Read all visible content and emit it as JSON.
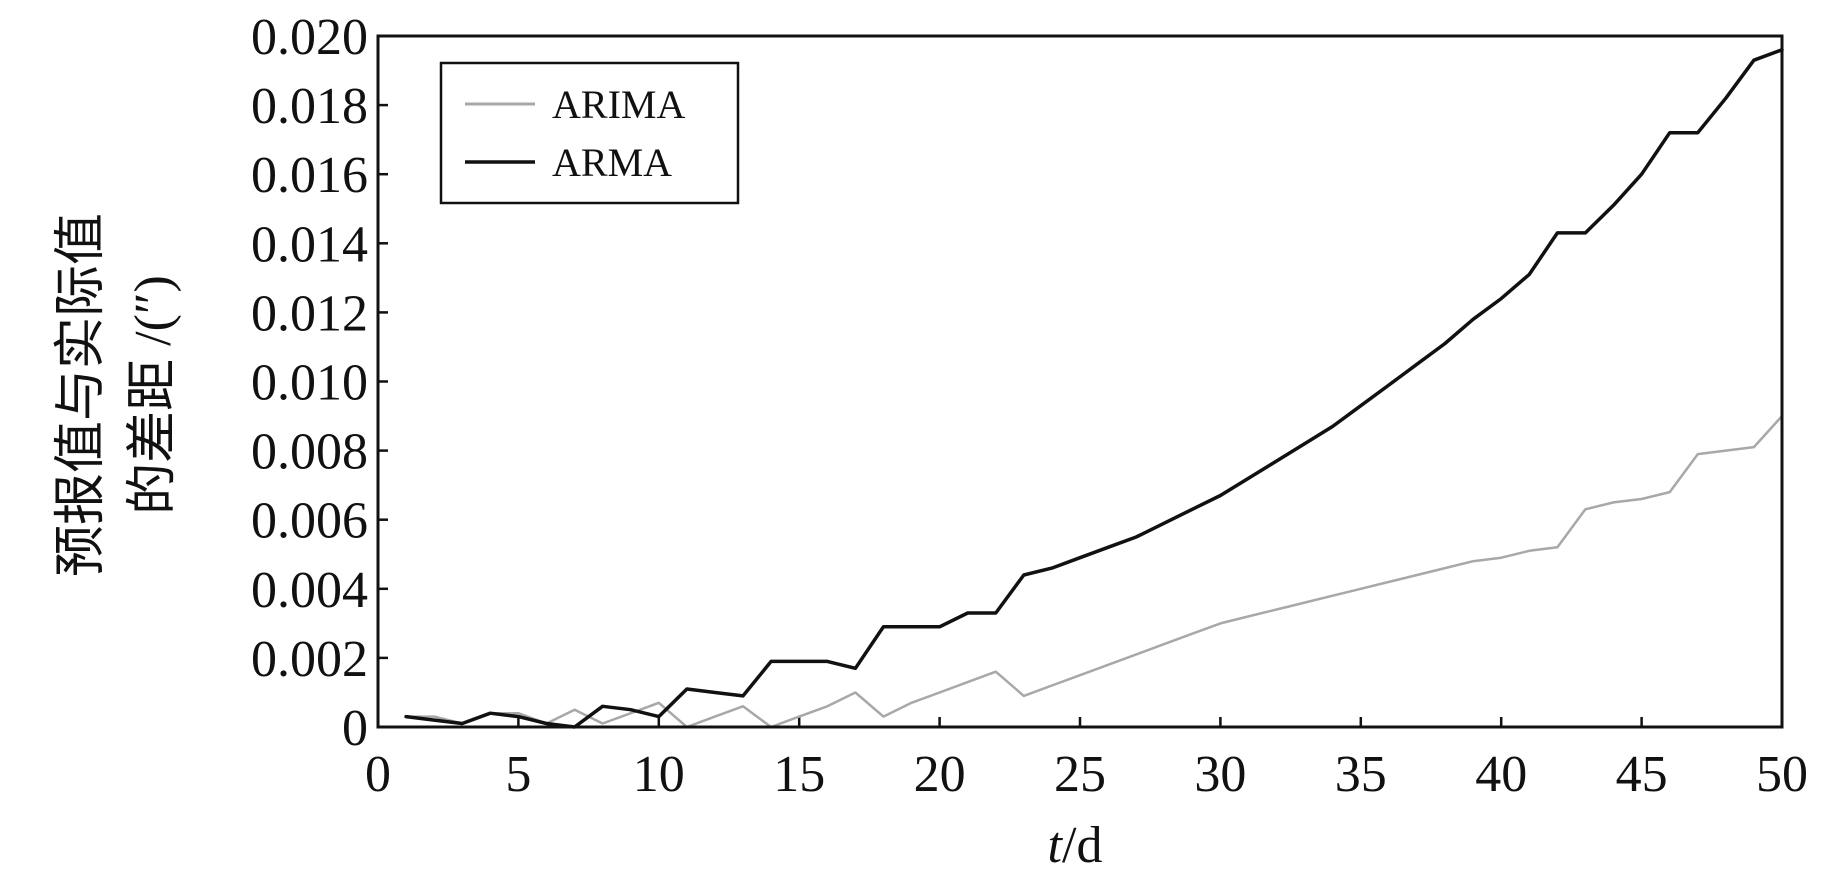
{
  "chart_data": {
    "type": "line",
    "xlabel_italic": "t",
    "xlabel_rest": "/d",
    "ylabel_line1": "预报值与实际值",
    "ylabel_line2": "的差距 /(″)",
    "xlim": [
      0,
      50
    ],
    "ylim": [
      0,
      0.02
    ],
    "x_ticks": [
      0,
      5,
      10,
      15,
      20,
      25,
      30,
      35,
      40,
      45,
      50
    ],
    "y_ticks": [
      0,
      0.002,
      0.004,
      0.006,
      0.008,
      0.01,
      0.012,
      0.014,
      0.016,
      0.018,
      0.02
    ],
    "y_tick_labels": [
      "0",
      "0.002",
      "0.004",
      "0.006",
      "0.008",
      "0.010",
      "0.012",
      "0.014",
      "0.016",
      "0.018",
      "0.020"
    ],
    "legend_position": "top-left",
    "series": [
      {
        "name": "ARIMA",
        "color": "#a8a8a8",
        "x": [
          1,
          2,
          3,
          4,
          5,
          6,
          7,
          8,
          9,
          10,
          11,
          12,
          13,
          14,
          15,
          16,
          17,
          18,
          19,
          20,
          21,
          22,
          23,
          24,
          25,
          26,
          27,
          28,
          29,
          30,
          31,
          32,
          33,
          34,
          35,
          36,
          37,
          38,
          39,
          40,
          41,
          42,
          43,
          44,
          45,
          46,
          47,
          48,
          49,
          50
        ],
        "y": [
          0.0003,
          0.0003,
          0.0001,
          0.0004,
          0.0004,
          0.0001,
          0.0005,
          0.0001,
          0.0004,
          0.0007,
          0.0,
          0.0003,
          0.0006,
          0.0,
          0.0003,
          0.0006,
          0.001,
          0.0003,
          0.0007,
          0.001,
          0.0013,
          0.0016,
          0.0009,
          0.0012,
          0.0015,
          0.0018,
          0.0021,
          0.0024,
          0.0027,
          0.003,
          0.0032,
          0.0034,
          0.0036,
          0.0038,
          0.004,
          0.0042,
          0.0044,
          0.0046,
          0.0048,
          0.0049,
          0.0051,
          0.0052,
          0.0063,
          0.0065,
          0.0066,
          0.0068,
          0.0079,
          0.008,
          0.0081,
          0.009
        ]
      },
      {
        "name": "ARMA",
        "color": "#111111",
        "x": [
          1,
          2,
          3,
          4,
          5,
          6,
          7,
          8,
          9,
          10,
          11,
          12,
          13,
          14,
          15,
          16,
          17,
          18,
          19,
          20,
          21,
          22,
          23,
          24,
          25,
          26,
          27,
          28,
          29,
          30,
          31,
          32,
          33,
          34,
          35,
          36,
          37,
          38,
          39,
          40,
          41,
          42,
          43,
          44,
          45,
          46,
          47,
          48,
          49,
          50
        ],
        "y": [
          0.0003,
          0.0002,
          0.0001,
          0.0004,
          0.0003,
          0.0001,
          0.0,
          0.0006,
          0.0005,
          0.0003,
          0.0011,
          0.001,
          0.0009,
          0.0019,
          0.0019,
          0.0019,
          0.0017,
          0.0029,
          0.0029,
          0.0029,
          0.0033,
          0.0033,
          0.0044,
          0.0046,
          0.0049,
          0.0052,
          0.0055,
          0.0059,
          0.0063,
          0.0067,
          0.0072,
          0.0077,
          0.0082,
          0.0087,
          0.0093,
          0.0099,
          0.0105,
          0.0111,
          0.0118,
          0.0124,
          0.0131,
          0.0143,
          0.0143,
          0.0151,
          0.016,
          0.0172,
          0.0172,
          0.0182,
          0.0193,
          0.0196
        ]
      }
    ]
  }
}
